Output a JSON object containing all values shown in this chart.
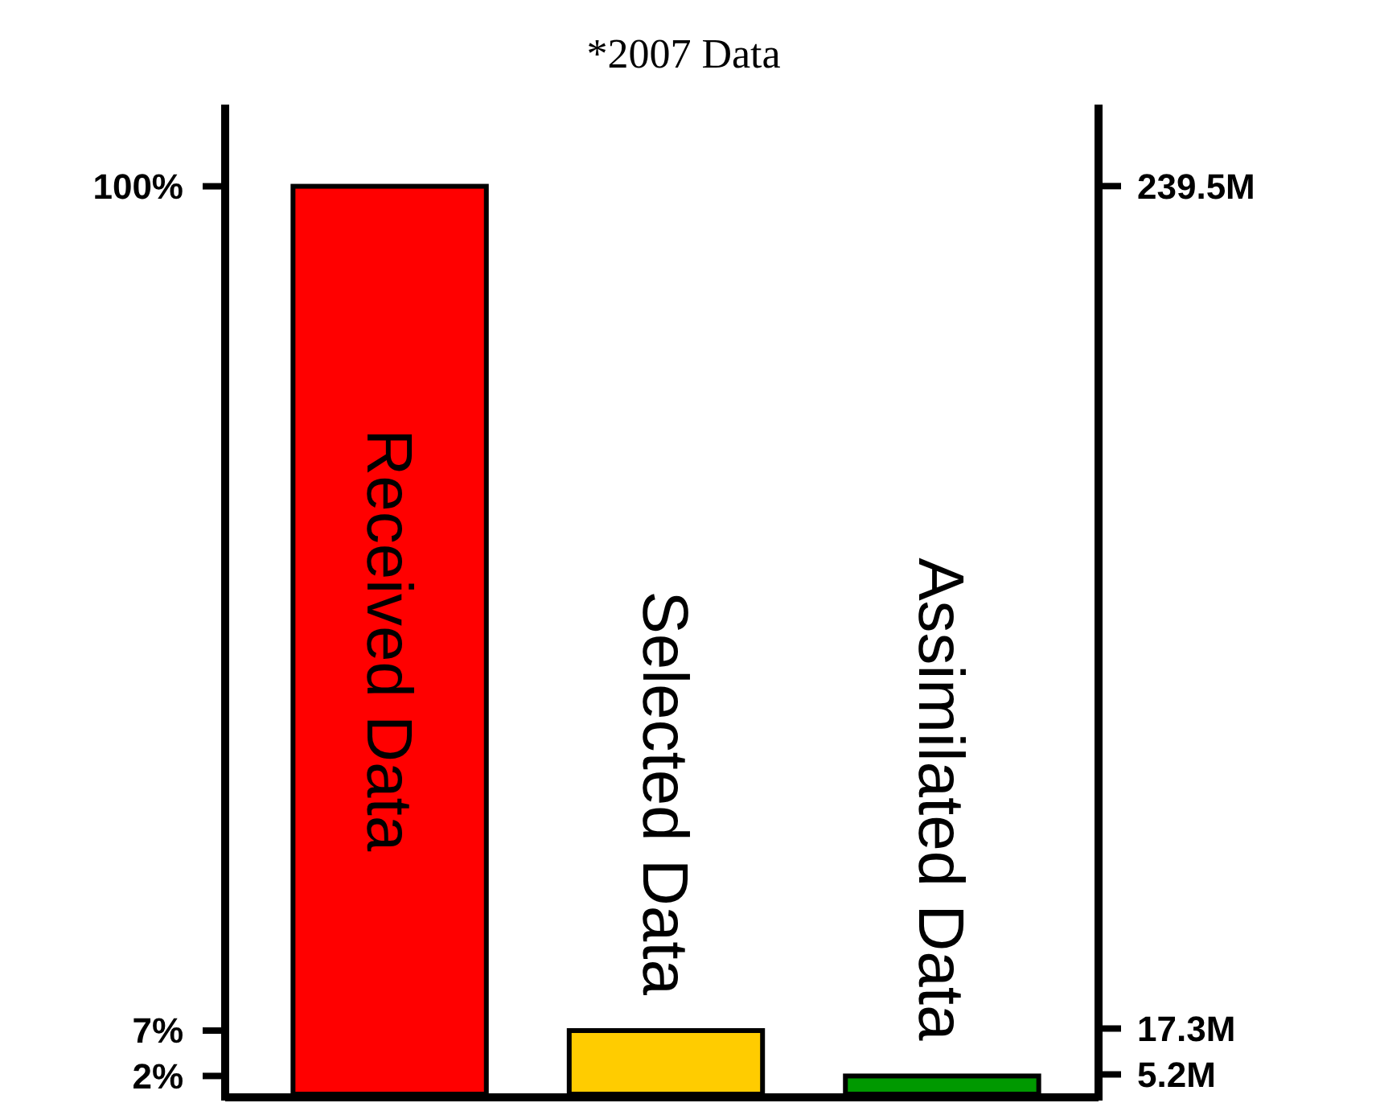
{
  "chart_data": {
    "type": "bar",
    "title": "*2007 Data",
    "categories": [
      "Received Data",
      "Selected Data",
      "Assimilated Data"
    ],
    "values": [
      100,
      7,
      2
    ],
    "colors": [
      "#ff0000",
      "#ffcc00",
      "#009900"
    ],
    "ylim": [
      0,
      109
    ],
    "yticks": [
      {
        "value": 100,
        "label": "100%"
      },
      {
        "value": 7,
        "label": "7%"
      },
      {
        "value": 2,
        "label": "2%"
      }
    ],
    "y2lim": [
      0,
      261
    ],
    "y2ticks": [
      {
        "value": 239.5,
        "label": "239.5M"
      },
      {
        "value": 17.3,
        "label": "17.3M"
      },
      {
        "value": 5.2,
        "label": "5.2M"
      }
    ],
    "grid": false
  }
}
